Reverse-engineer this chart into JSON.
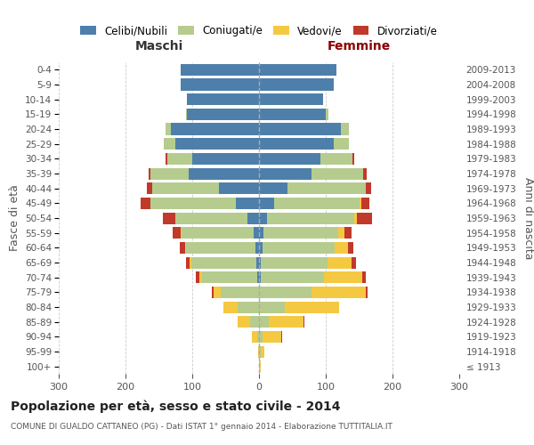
{
  "age_groups": [
    "100+",
    "95-99",
    "90-94",
    "85-89",
    "80-84",
    "75-79",
    "70-74",
    "65-69",
    "60-64",
    "55-59",
    "50-54",
    "45-49",
    "40-44",
    "35-39",
    "30-34",
    "25-29",
    "20-24",
    "15-19",
    "10-14",
    "5-9",
    "0-4"
  ],
  "birth_years": [
    "≤ 1913",
    "1914-1918",
    "1919-1923",
    "1924-1928",
    "1929-1933",
    "1934-1938",
    "1939-1943",
    "1944-1948",
    "1949-1953",
    "1954-1958",
    "1959-1963",
    "1964-1968",
    "1969-1973",
    "1974-1978",
    "1979-1983",
    "1984-1988",
    "1989-1993",
    "1994-1998",
    "1999-2003",
    "2004-2008",
    "2009-2013"
  ],
  "maschi_celibi": [
    0,
    0,
    0,
    0,
    0,
    0,
    3,
    4,
    6,
    8,
    18,
    35,
    60,
    105,
    100,
    125,
    132,
    108,
    108,
    118,
    118
  ],
  "maschi_coniugati": [
    0,
    0,
    3,
    14,
    32,
    58,
    82,
    97,
    103,
    108,
    108,
    128,
    100,
    58,
    38,
    18,
    8,
    2,
    0,
    0,
    0
  ],
  "maschi_vedovi": [
    0,
    2,
    8,
    18,
    22,
    10,
    4,
    3,
    2,
    2,
    0,
    0,
    0,
    0,
    0,
    0,
    0,
    0,
    0,
    0,
    0
  ],
  "maschi_divorziati": [
    0,
    0,
    0,
    0,
    0,
    3,
    6,
    5,
    8,
    12,
    18,
    14,
    8,
    2,
    2,
    0,
    0,
    0,
    0,
    0,
    0
  ],
  "femmine_nubili": [
    0,
    0,
    0,
    0,
    0,
    0,
    2,
    3,
    5,
    6,
    12,
    22,
    42,
    78,
    92,
    112,
    122,
    100,
    96,
    112,
    116
  ],
  "femmine_coniugate": [
    0,
    2,
    5,
    14,
    38,
    78,
    95,
    100,
    108,
    112,
    130,
    128,
    118,
    78,
    48,
    22,
    12,
    4,
    0,
    0,
    0
  ],
  "femmine_vedove": [
    2,
    6,
    28,
    52,
    82,
    82,
    58,
    36,
    20,
    10,
    5,
    3,
    0,
    0,
    0,
    0,
    0,
    0,
    0,
    0,
    0
  ],
  "femmine_divorziate": [
    0,
    0,
    2,
    2,
    0,
    3,
    5,
    6,
    8,
    10,
    22,
    12,
    8,
    5,
    2,
    0,
    0,
    0,
    0,
    0,
    0
  ],
  "color_celibi": "#4e7fab",
  "color_coniugati": "#b5cc8e",
  "color_vedovi": "#f5c842",
  "color_divorziati": "#c0392b",
  "title": "Popolazione per età, sesso e stato civile - 2014",
  "subtitle": "COMUNE DI GUALDO CATTANEO (PG) - Dati ISTAT 1° gennaio 2014 - Elaborazione TUTTITALIA.IT",
  "label_maschi": "Maschi",
  "label_femmine": "Femmine",
  "label_fasce": "Fasce di età",
  "label_anni": "Anni di nascita",
  "legend_labels": [
    "Celibi/Nubili",
    "Coniugati/e",
    "Vedovi/e",
    "Divorziati/e"
  ],
  "xlim": 300,
  "bg_color": "#ffffff",
  "grid_color": "#cccccc"
}
